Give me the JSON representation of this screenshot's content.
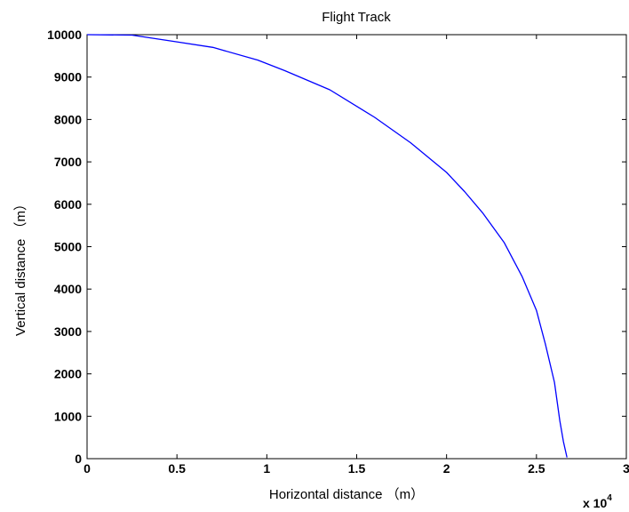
{
  "chart_data": {
    "type": "line",
    "title": "Flight Track",
    "xlabel": "Horizontal distance （m）",
    "ylabel": "Vertical distance （m）",
    "x_multiplier_base": "x 10",
    "x_multiplier_exponent": "4",
    "xlim": [
      0,
      3
    ],
    "ylim": [
      0,
      10000
    ],
    "xticks": [
      0,
      0.5,
      1,
      1.5,
      2,
      2.5,
      3
    ],
    "xtick_labels": [
      "0",
      "0.5",
      "1",
      "1.5",
      "2",
      "2.5",
      "3"
    ],
    "yticks": [
      0,
      1000,
      2000,
      3000,
      4000,
      5000,
      6000,
      7000,
      8000,
      9000,
      10000
    ],
    "ytick_labels": [
      "0",
      "1000",
      "2000",
      "3000",
      "4000",
      "5000",
      "6000",
      "7000",
      "8000",
      "9000",
      "10000"
    ],
    "grid": false,
    "line_color": "#0000ff",
    "series": [
      {
        "x": [
          0,
          0.25,
          0.5,
          0.7,
          0.95,
          1.1,
          1.35,
          1.6,
          1.8,
          2.0,
          2.1,
          2.2,
          2.32,
          2.42,
          2.5,
          2.55,
          2.6,
          2.63,
          2.65,
          2.67
        ],
        "y": [
          10000,
          9990,
          9830,
          9700,
          9400,
          9150,
          8700,
          8050,
          7450,
          6750,
          6300,
          5800,
          5100,
          4300,
          3500,
          2700,
          1800,
          900,
          400,
          30
        ]
      }
    ]
  }
}
